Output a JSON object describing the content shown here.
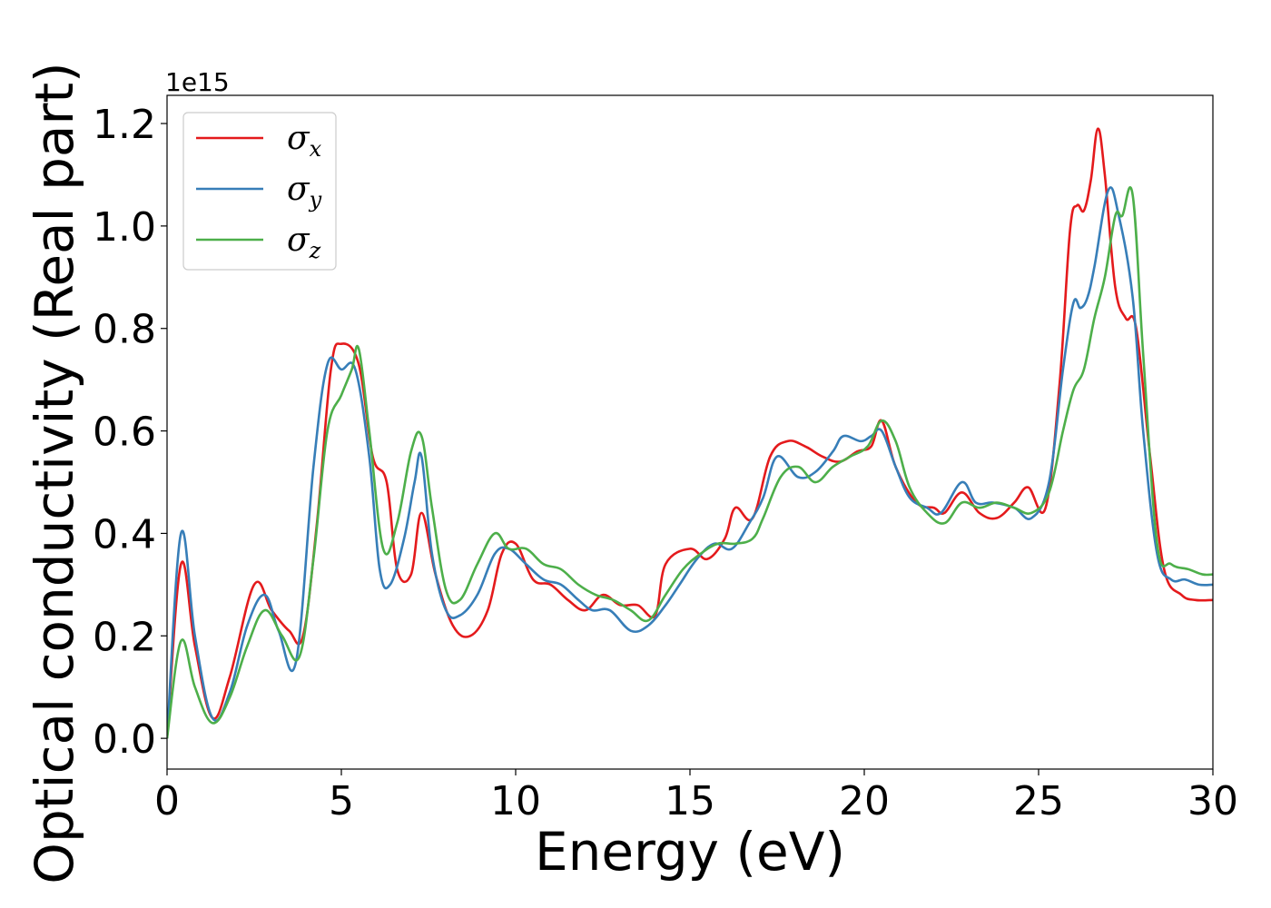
{
  "chart_data": {
    "type": "line",
    "xlabel": "Energy (eV)",
    "ylabel": "Optical conductivity (Real part)",
    "y_offset_label": "1e15",
    "xlim": [
      0,
      30
    ],
    "ylim": [
      -0.06,
      1.255
    ],
    "x_ticks": [
      0,
      5,
      10,
      15,
      20,
      25,
      30
    ],
    "x_tick_labels": [
      "0",
      "5",
      "10",
      "15",
      "20",
      "25",
      "30"
    ],
    "y_ticks": [
      0.0,
      0.2,
      0.4,
      0.6,
      0.8,
      1.0,
      1.2
    ],
    "y_tick_labels": [
      "0.0",
      "0.2",
      "0.4",
      "0.6",
      "0.8",
      "1.0",
      "1.2"
    ],
    "grid": false,
    "legend_position": "top-left",
    "series": [
      {
        "name": "σx",
        "symbol": "σ",
        "subscript": "x",
        "color": "#e41a1c",
        "x": [
          0,
          0.4,
          0.8,
          1.3,
          1.8,
          2.5,
          3,
          3.5,
          3.9,
          4.3,
          4.7,
          5,
          5.5,
          5.9,
          6.3,
          6.6,
          7,
          7.3,
          7.7,
          8.2,
          8.7,
          9.2,
          9.6,
          10,
          10.5,
          11,
          11.5,
          12,
          12.5,
          13,
          13.5,
          14,
          14.3,
          15,
          15.5,
          16,
          16.3,
          16.8,
          17.3,
          17.8,
          18.3,
          18.8,
          19.3,
          19.8,
          20.2,
          20.5,
          20.9,
          21.5,
          22,
          22.3,
          22.8,
          23.3,
          23.8,
          24.3,
          24.7,
          25.2,
          25.6,
          25.9,
          26.1,
          26.3,
          26.5,
          26.7,
          26.9,
          27.2,
          27.5,
          27.8,
          28.2,
          28.6,
          29.1,
          29.5,
          30
        ],
        "y": [
          0,
          0.34,
          0.18,
          0.04,
          0.12,
          0.3,
          0.25,
          0.21,
          0.2,
          0.42,
          0.72,
          0.77,
          0.73,
          0.55,
          0.5,
          0.33,
          0.32,
          0.44,
          0.32,
          0.22,
          0.2,
          0.25,
          0.36,
          0.38,
          0.31,
          0.3,
          0.27,
          0.25,
          0.28,
          0.26,
          0.26,
          0.24,
          0.34,
          0.37,
          0.35,
          0.39,
          0.45,
          0.43,
          0.55,
          0.58,
          0.57,
          0.55,
          0.54,
          0.56,
          0.57,
          0.62,
          0.53,
          0.46,
          0.45,
          0.44,
          0.48,
          0.44,
          0.43,
          0.46,
          0.49,
          0.45,
          0.69,
          0.99,
          1.04,
          1.03,
          1.09,
          1.19,
          1.1,
          0.88,
          0.82,
          0.8,
          0.55,
          0.33,
          0.28,
          0.27,
          0.27
        ]
      },
      {
        "name": "σy",
        "symbol": "σ",
        "subscript": "y",
        "color": "#377eb8",
        "x": [
          0,
          0.4,
          0.8,
          1.3,
          1.8,
          2.3,
          2.8,
          3.2,
          3.7,
          4.2,
          4.6,
          5,
          5.4,
          5.8,
          6.1,
          6.4,
          6.8,
          7.1,
          7.3,
          7.6,
          8,
          8.4,
          8.9,
          9.4,
          9.8,
          10.3,
          10.8,
          11.3,
          11.8,
          12.2,
          12.7,
          13.3,
          13.8,
          14.3,
          14.7,
          15.2,
          15.7,
          16.2,
          16.7,
          17.1,
          17.5,
          18.1,
          18.6,
          19.1,
          19.4,
          19.9,
          20.2,
          20.5,
          20.9,
          21.3,
          21.8,
          22.2,
          22.8,
          23.2,
          23.7,
          24.3,
          24.8,
          25.3,
          25.7,
          26,
          26.2,
          26.4,
          26.6,
          27,
          27.3,
          27.7,
          28,
          28.4,
          28.8,
          29.2,
          29.6,
          30
        ],
        "y": [
          0,
          0.4,
          0.2,
          0.04,
          0.09,
          0.22,
          0.28,
          0.21,
          0.15,
          0.53,
          0.73,
          0.72,
          0.72,
          0.55,
          0.33,
          0.3,
          0.39,
          0.5,
          0.55,
          0.36,
          0.25,
          0.24,
          0.28,
          0.36,
          0.37,
          0.34,
          0.31,
          0.3,
          0.27,
          0.25,
          0.25,
          0.21,
          0.22,
          0.26,
          0.3,
          0.35,
          0.38,
          0.37,
          0.42,
          0.47,
          0.55,
          0.51,
          0.52,
          0.56,
          0.59,
          0.58,
          0.59,
          0.6,
          0.53,
          0.47,
          0.45,
          0.44,
          0.5,
          0.46,
          0.46,
          0.45,
          0.43,
          0.5,
          0.72,
          0.85,
          0.84,
          0.86,
          0.92,
          1.07,
          1.02,
          0.86,
          0.6,
          0.36,
          0.31,
          0.31,
          0.3,
          0.3
        ]
      },
      {
        "name": "σz",
        "symbol": "σ",
        "subscript": "z",
        "color": "#4daf4a",
        "x": [
          0,
          0.4,
          0.8,
          1.3,
          1.8,
          2.3,
          2.8,
          3.3,
          3.8,
          4.2,
          4.6,
          5,
          5.3,
          5.5,
          5.8,
          6.2,
          6.6,
          7,
          7.3,
          7.6,
          8,
          8.4,
          8.9,
          9.4,
          9.8,
          10.3,
          10.8,
          11.3,
          11.8,
          12.3,
          12.8,
          13.3,
          13.8,
          14.3,
          14.8,
          15.3,
          15.8,
          16.3,
          16.8,
          17.1,
          17.6,
          18.1,
          18.6,
          19.1,
          19.6,
          20.1,
          20.5,
          20.9,
          21.3,
          21.8,
          22.3,
          22.8,
          23.3,
          23.8,
          24.3,
          24.8,
          25.3,
          25.7,
          26,
          26.3,
          26.6,
          26.9,
          27.2,
          27.4,
          27.7,
          28,
          28.4,
          28.8,
          29.3,
          29.7,
          30
        ],
        "y": [
          0,
          0.19,
          0.1,
          0.03,
          0.08,
          0.18,
          0.25,
          0.2,
          0.16,
          0.35,
          0.6,
          0.67,
          0.72,
          0.76,
          0.6,
          0.37,
          0.42,
          0.56,
          0.59,
          0.45,
          0.29,
          0.27,
          0.34,
          0.4,
          0.37,
          0.37,
          0.34,
          0.33,
          0.3,
          0.28,
          0.27,
          0.25,
          0.23,
          0.28,
          0.33,
          0.36,
          0.38,
          0.38,
          0.39,
          0.43,
          0.51,
          0.53,
          0.5,
          0.53,
          0.55,
          0.57,
          0.62,
          0.58,
          0.49,
          0.44,
          0.42,
          0.46,
          0.45,
          0.46,
          0.45,
          0.44,
          0.48,
          0.6,
          0.68,
          0.72,
          0.82,
          0.9,
          1.02,
          1.02,
          1.06,
          0.75,
          0.38,
          0.34,
          0.33,
          0.32,
          0.32
        ]
      }
    ]
  }
}
